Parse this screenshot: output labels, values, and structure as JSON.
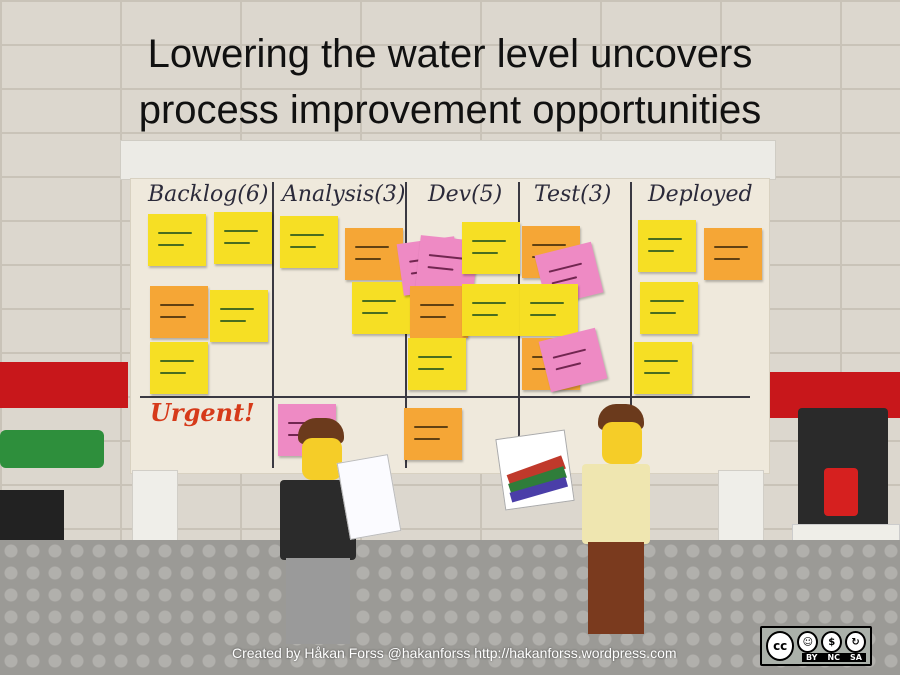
{
  "slide": {
    "title_line1": "Lowering the water level uncovers",
    "title_line2": "process improvement opportunities",
    "credit": "Created by Håkan Forss @hakanforss http://hakanforss.wordpress.com"
  },
  "board": {
    "columns": [
      {
        "label": "Backlog(6)"
      },
      {
        "label": "Analysis(3)"
      },
      {
        "label": "Dev(5)"
      },
      {
        "label": "Test(3)"
      },
      {
        "label": "Deployed"
      }
    ],
    "urgent_label": "Urgent!"
  },
  "license": {
    "cc": "cc",
    "icons": [
      "BY",
      "NC",
      "SA"
    ]
  },
  "colors": {
    "sticky_yellow": "#f6df24",
    "sticky_orange": "#f5a636",
    "sticky_pink": "#ee8ac4",
    "wall_stripe": "#c8171b",
    "urgent_text": "#d63a1a"
  }
}
